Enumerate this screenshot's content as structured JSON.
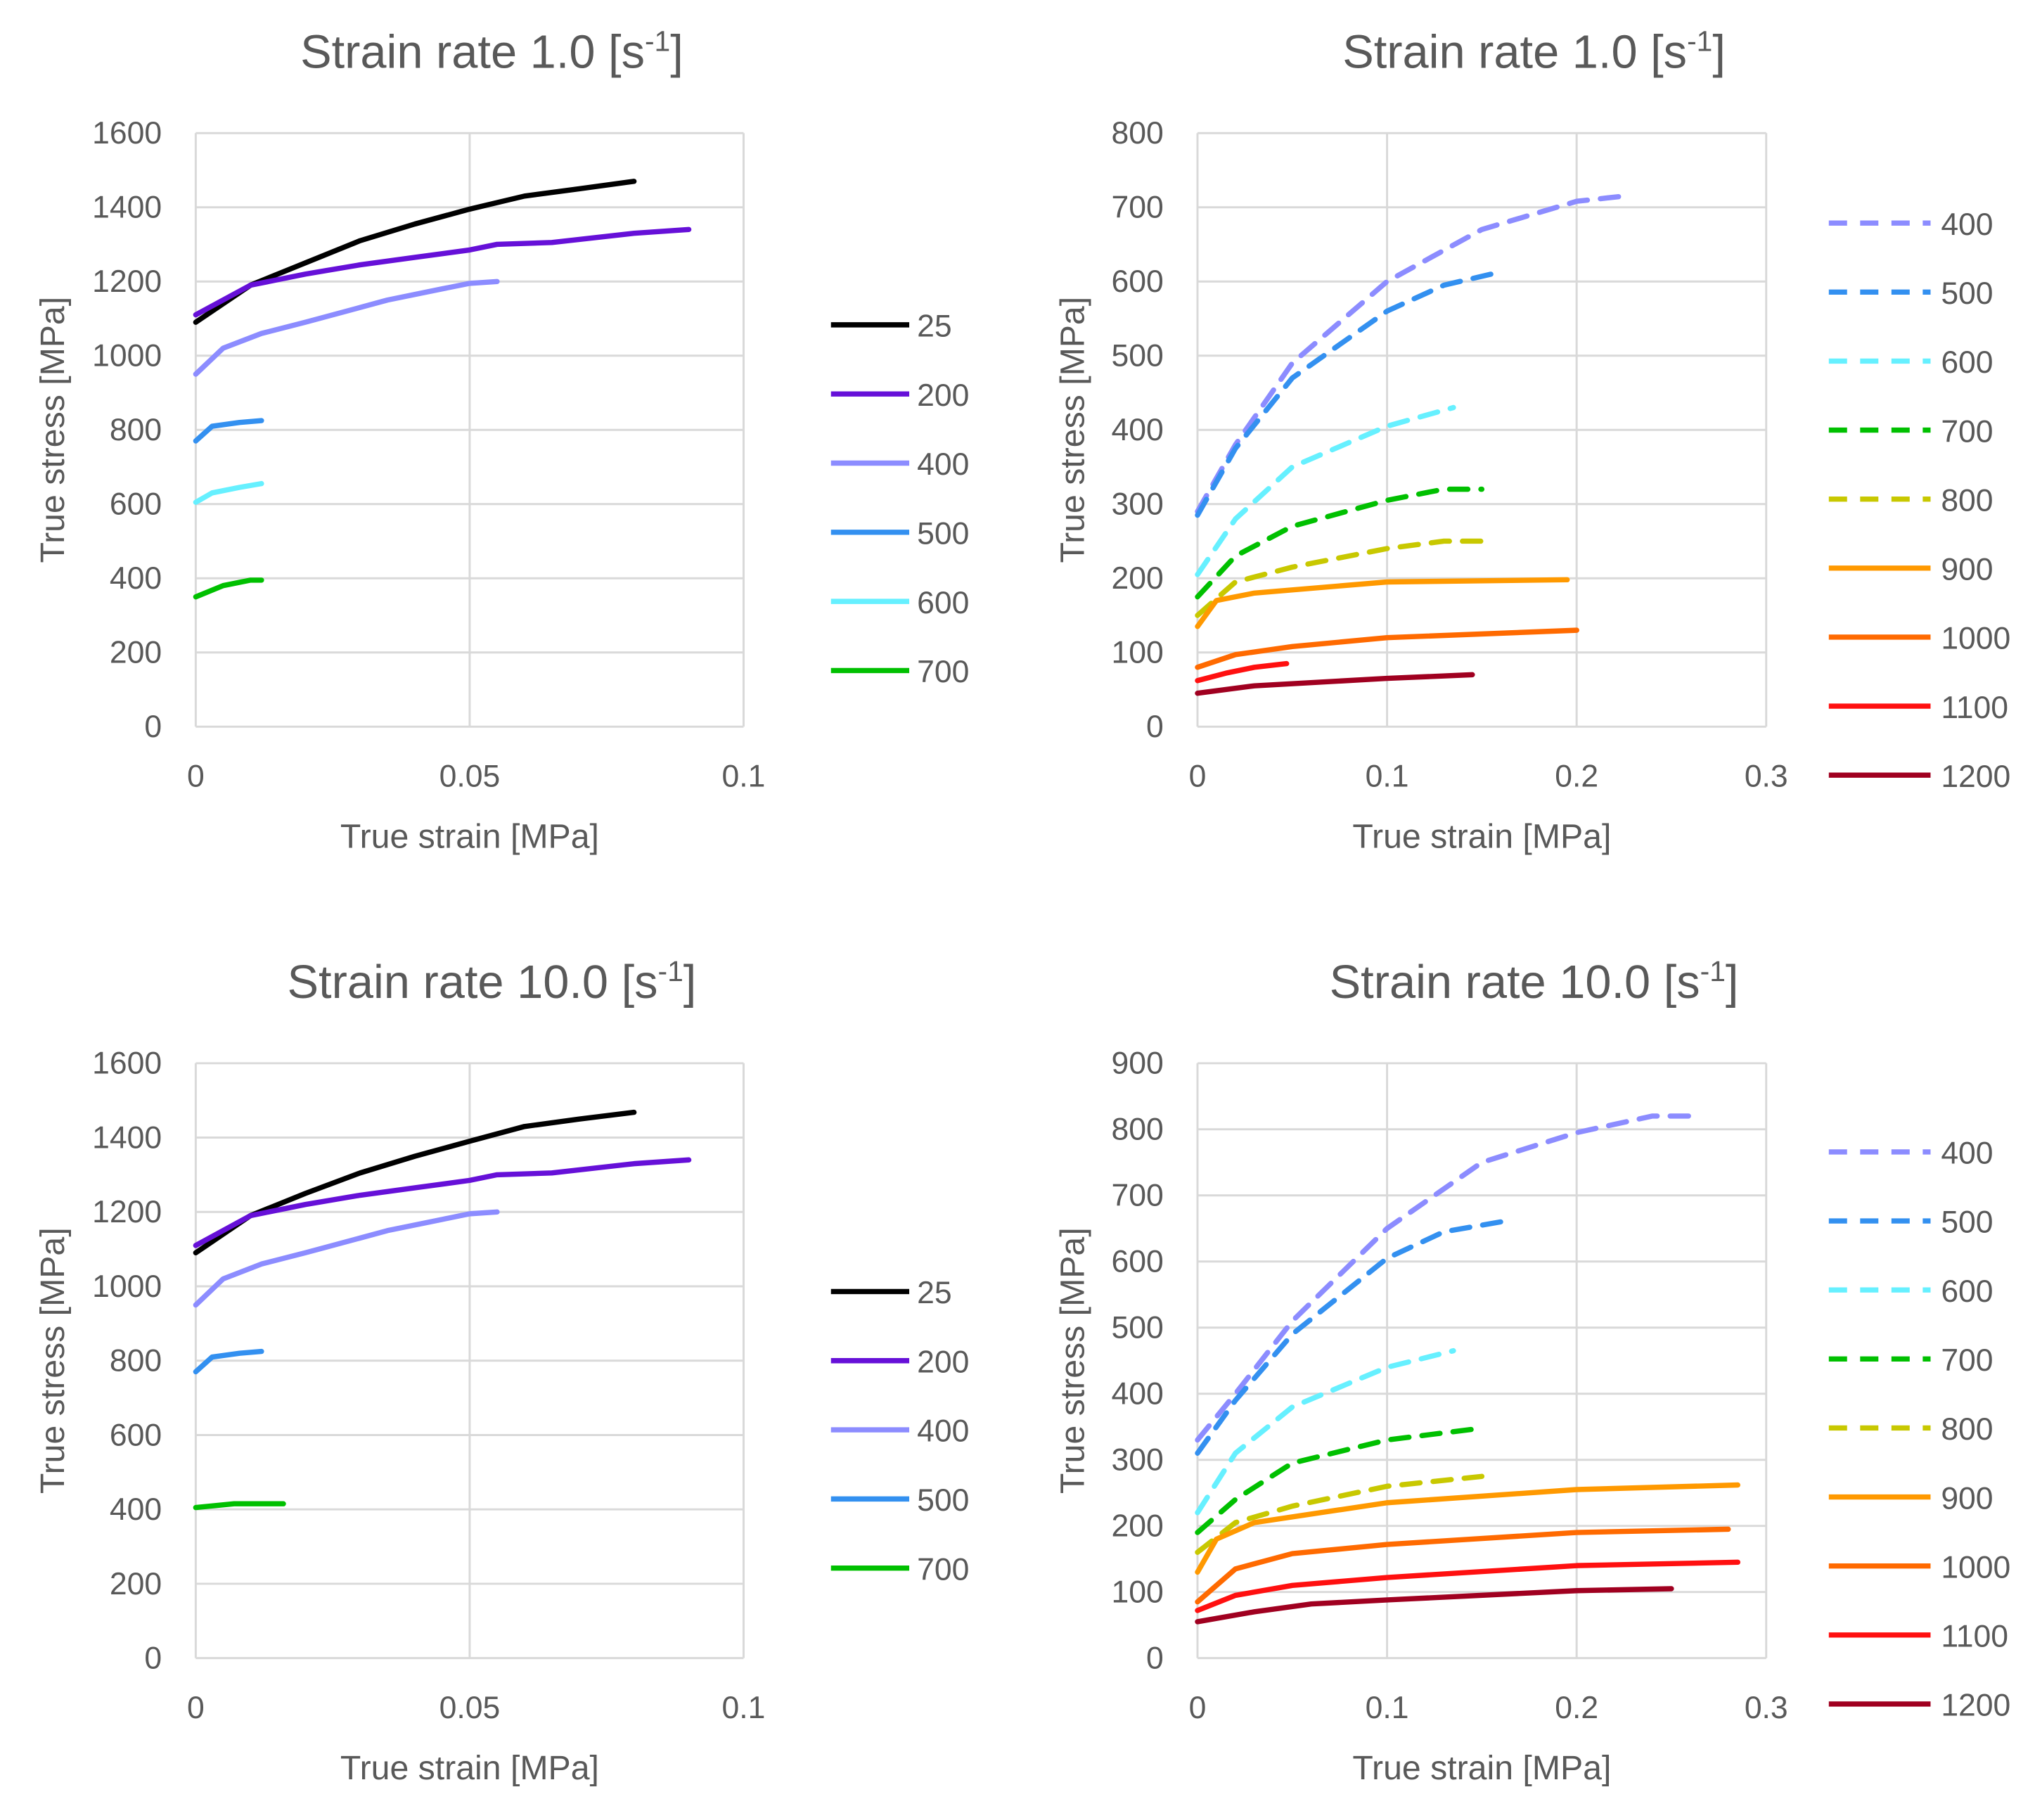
{
  "chart_data": [
    {
      "type": "line",
      "title_main": "Strain rate 1.0 [s",
      "title_sup": "-1",
      "title_end": "]",
      "xlabel": "True strain [MPa]",
      "ylabel": "True stress [MPa]",
      "xlim": [
        0,
        0.1
      ],
      "xticks": [
        0,
        0.05,
        0.1
      ],
      "xtick_labels": [
        "0",
        "0.05",
        "0.1"
      ],
      "ylim": [
        0,
        1600
      ],
      "yticks": [
        0,
        200,
        400,
        600,
        800,
        1000,
        1200,
        1400,
        1600
      ],
      "ytick_labels": [
        "0",
        "200",
        "400",
        "600",
        "800",
        "1000",
        "1200",
        "1400",
        "1600"
      ],
      "grid": true,
      "legend": "right",
      "series": [
        {
          "name": "25",
          "color": "#000000",
          "dash": false,
          "points": [
            [
              0,
              1090
            ],
            [
              0.01,
              1190
            ],
            [
              0.02,
              1250
            ],
            [
              0.03,
              1310
            ],
            [
              0.04,
              1355
            ],
            [
              0.05,
              1395
            ],
            [
              0.06,
              1430
            ],
            [
              0.07,
              1450
            ],
            [
              0.08,
              1470
            ]
          ]
        },
        {
          "name": "200",
          "color": "#6610d8",
          "dash": false,
          "points": [
            [
              0,
              1110
            ],
            [
              0.01,
              1190
            ],
            [
              0.02,
              1220
            ],
            [
              0.03,
              1245
            ],
            [
              0.04,
              1265
            ],
            [
              0.05,
              1285
            ],
            [
              0.055,
              1300
            ],
            [
              0.065,
              1305
            ],
            [
              0.08,
              1330
            ],
            [
              0.09,
              1340
            ]
          ]
        },
        {
          "name": "400",
          "color": "#8c8cff",
          "dash": false,
          "points": [
            [
              0,
              950
            ],
            [
              0.005,
              1020
            ],
            [
              0.012,
              1060
            ],
            [
              0.02,
              1090
            ],
            [
              0.03,
              1130
            ],
            [
              0.035,
              1150
            ],
            [
              0.045,
              1180
            ],
            [
              0.05,
              1195
            ],
            [
              0.055,
              1200
            ]
          ]
        },
        {
          "name": "500",
          "color": "#3390f0",
          "dash": false,
          "points": [
            [
              0,
              770
            ],
            [
              0.003,
              810
            ],
            [
              0.008,
              820
            ],
            [
              0.012,
              825
            ]
          ]
        },
        {
          "name": "600",
          "color": "#66f0ff",
          "dash": false,
          "points": [
            [
              0,
              605
            ],
            [
              0.003,
              630
            ],
            [
              0.008,
              645
            ],
            [
              0.012,
              655
            ]
          ]
        },
        {
          "name": "700",
          "color": "#00c000",
          "dash": false,
          "points": [
            [
              0,
              350
            ],
            [
              0.005,
              380
            ],
            [
              0.01,
              395
            ],
            [
              0.012,
              395
            ]
          ]
        }
      ]
    },
    {
      "type": "line",
      "title_main": "Strain rate 1.0 [s",
      "title_sup": "-1",
      "title_end": "]",
      "xlabel": "True strain [MPa]",
      "ylabel": "True stress [MPa]",
      "xlim": [
        0,
        0.3
      ],
      "xticks": [
        0,
        0.1,
        0.2,
        0.3
      ],
      "xtick_labels": [
        "0",
        "0.1",
        "0.2",
        "0.3"
      ],
      "ylim": [
        0,
        800
      ],
      "yticks": [
        0,
        100,
        200,
        300,
        400,
        500,
        600,
        700,
        800
      ],
      "ytick_labels": [
        "0",
        "100",
        "200",
        "300",
        "400",
        "500",
        "600",
        "700",
        "800"
      ],
      "grid": true,
      "legend": "right",
      "series": [
        {
          "name": "400",
          "color": "#8c8cff",
          "dash": true,
          "points": [
            [
              0,
              290
            ],
            [
              0.02,
              380
            ],
            [
              0.05,
              490
            ],
            [
              0.1,
              600
            ],
            [
              0.15,
              670
            ],
            [
              0.2,
              708
            ],
            [
              0.225,
              715
            ]
          ]
        },
        {
          "name": "500",
          "color": "#3390f0",
          "dash": true,
          "points": [
            [
              0,
              285
            ],
            [
              0.02,
              375
            ],
            [
              0.05,
              470
            ],
            [
              0.1,
              560
            ],
            [
              0.13,
              595
            ],
            [
              0.155,
              610
            ]
          ]
        },
        {
          "name": "600",
          "color": "#66f0ff",
          "dash": true,
          "points": [
            [
              0,
              205
            ],
            [
              0.02,
              280
            ],
            [
              0.05,
              350
            ],
            [
              0.1,
              405
            ],
            [
              0.135,
              430
            ]
          ]
        },
        {
          "name": "700",
          "color": "#00c000",
          "dash": true,
          "points": [
            [
              0,
              175
            ],
            [
              0.02,
              230
            ],
            [
              0.05,
              270
            ],
            [
              0.1,
              305
            ],
            [
              0.13,
              320
            ],
            [
              0.15,
              320
            ]
          ]
        },
        {
          "name": "800",
          "color": "#c8c800",
          "dash": true,
          "points": [
            [
              0,
              150
            ],
            [
              0.02,
              195
            ],
            [
              0.05,
              215
            ],
            [
              0.1,
              240
            ],
            [
              0.13,
              250
            ],
            [
              0.155,
              250
            ]
          ]
        },
        {
          "name": "900",
          "color": "#ff9900",
          "dash": false,
          "points": [
            [
              0,
              135
            ],
            [
              0.01,
              170
            ],
            [
              0.03,
              180
            ],
            [
              0.1,
              195
            ],
            [
              0.195,
              198
            ]
          ]
        },
        {
          "name": "1000",
          "color": "#ff6a00",
          "dash": false,
          "points": [
            [
              0,
              80
            ],
            [
              0.02,
              97
            ],
            [
              0.05,
              108
            ],
            [
              0.1,
              120
            ],
            [
              0.2,
              130
            ]
          ]
        },
        {
          "name": "1100",
          "color": "#ff1010",
          "dash": false,
          "points": [
            [
              0,
              62
            ],
            [
              0.015,
              72
            ],
            [
              0.03,
              80
            ],
            [
              0.047,
              85
            ]
          ]
        },
        {
          "name": "1200",
          "color": "#a00020",
          "dash": false,
          "points": [
            [
              0,
              45
            ],
            [
              0.03,
              55
            ],
            [
              0.1,
              65
            ],
            [
              0.145,
              70
            ]
          ]
        }
      ]
    },
    {
      "type": "line",
      "title_main": "Strain rate 10.0 [s",
      "title_sup": "-1",
      "title_end": "]",
      "xlabel": "True strain [MPa]",
      "ylabel": "True stress [MPa]",
      "xlim": [
        0,
        0.1
      ],
      "xticks": [
        0,
        0.05,
        0.1
      ],
      "xtick_labels": [
        "0",
        "0.05",
        "0.1"
      ],
      "ylim": [
        0,
        1600
      ],
      "yticks": [
        0,
        200,
        400,
        600,
        800,
        1000,
        1200,
        1400,
        1600
      ],
      "ytick_labels": [
        "0",
        "200",
        "400",
        "600",
        "800",
        "1000",
        "1200",
        "1400",
        "1600"
      ],
      "grid": true,
      "legend": "right",
      "series": [
        {
          "name": "25",
          "color": "#000000",
          "dash": false,
          "points": [
            [
              0,
              1090
            ],
            [
              0.01,
              1190
            ],
            [
              0.02,
              1250
            ],
            [
              0.03,
              1305
            ],
            [
              0.04,
              1350
            ],
            [
              0.05,
              1390
            ],
            [
              0.06,
              1430
            ],
            [
              0.07,
              1450
            ],
            [
              0.08,
              1468
            ]
          ]
        },
        {
          "name": "200",
          "color": "#6610d8",
          "dash": false,
          "points": [
            [
              0,
              1110
            ],
            [
              0.01,
              1190
            ],
            [
              0.02,
              1220
            ],
            [
              0.03,
              1245
            ],
            [
              0.04,
              1265
            ],
            [
              0.05,
              1285
            ],
            [
              0.055,
              1300
            ],
            [
              0.065,
              1305
            ],
            [
              0.08,
              1330
            ],
            [
              0.09,
              1340
            ]
          ]
        },
        {
          "name": "400",
          "color": "#8c8cff",
          "dash": false,
          "points": [
            [
              0,
              950
            ],
            [
              0.005,
              1020
            ],
            [
              0.012,
              1060
            ],
            [
              0.02,
              1090
            ],
            [
              0.03,
              1130
            ],
            [
              0.035,
              1150
            ],
            [
              0.045,
              1180
            ],
            [
              0.05,
              1195
            ],
            [
              0.055,
              1200
            ]
          ]
        },
        {
          "name": "500",
          "color": "#3390f0",
          "dash": false,
          "points": [
            [
              0,
              770
            ],
            [
              0.003,
              810
            ],
            [
              0.008,
              820
            ],
            [
              0.012,
              825
            ]
          ]
        },
        {
          "name": "700",
          "color": "#00c000",
          "dash": false,
          "points": [
            [
              0,
              405
            ],
            [
              0.007,
              415
            ],
            [
              0.016,
              415
            ]
          ]
        }
      ]
    },
    {
      "type": "line",
      "title_main": "Strain rate 10.0 [s",
      "title_sup": "-1",
      "title_end": "]",
      "xlabel": "True strain [MPa]",
      "ylabel": "True stress [MPa]",
      "xlim": [
        0,
        0.3
      ],
      "xticks": [
        0,
        0.1,
        0.2,
        0.3
      ],
      "xtick_labels": [
        "0",
        "0.1",
        "0.2",
        "0.3"
      ],
      "ylim": [
        0,
        900
      ],
      "yticks": [
        0,
        100,
        200,
        300,
        400,
        500,
        600,
        700,
        800,
        900
      ],
      "ytick_labels": [
        "0",
        "100",
        "200",
        "300",
        "400",
        "500",
        "600",
        "700",
        "800",
        "900"
      ],
      "grid": true,
      "legend": "right",
      "series": [
        {
          "name": "400",
          "color": "#8c8cff",
          "dash": true,
          "points": [
            [
              0,
              330
            ],
            [
              0.02,
              400
            ],
            [
              0.05,
              510
            ],
            [
              0.1,
              650
            ],
            [
              0.15,
              750
            ],
            [
              0.2,
              795
            ],
            [
              0.24,
              820
            ],
            [
              0.265,
              820
            ]
          ]
        },
        {
          "name": "500",
          "color": "#3390f0",
          "dash": true,
          "points": [
            [
              0,
              310
            ],
            [
              0.02,
              390
            ],
            [
              0.05,
              490
            ],
            [
              0.1,
              605
            ],
            [
              0.13,
              645
            ],
            [
              0.16,
              660
            ]
          ]
        },
        {
          "name": "600",
          "color": "#66f0ff",
          "dash": true,
          "points": [
            [
              0,
              220
            ],
            [
              0.02,
              310
            ],
            [
              0.05,
              380
            ],
            [
              0.1,
              440
            ],
            [
              0.135,
              465
            ]
          ]
        },
        {
          "name": "700",
          "color": "#00c000",
          "dash": true,
          "points": [
            [
              0,
              190
            ],
            [
              0.02,
              240
            ],
            [
              0.05,
              295
            ],
            [
              0.1,
              330
            ],
            [
              0.15,
              348
            ]
          ]
        },
        {
          "name": "800",
          "color": "#c8c800",
          "dash": true,
          "points": [
            [
              0,
              160
            ],
            [
              0.02,
              205
            ],
            [
              0.05,
              230
            ],
            [
              0.1,
              260
            ],
            [
              0.15,
              275
            ]
          ]
        },
        {
          "name": "900",
          "color": "#ff9900",
          "dash": false,
          "points": [
            [
              0,
              130
            ],
            [
              0.01,
              180
            ],
            [
              0.03,
              205
            ],
            [
              0.1,
              235
            ],
            [
              0.2,
              255
            ],
            [
              0.285,
              262
            ]
          ]
        },
        {
          "name": "1000",
          "color": "#ff6a00",
          "dash": false,
          "points": [
            [
              0,
              85
            ],
            [
              0.02,
              135
            ],
            [
              0.05,
              158
            ],
            [
              0.1,
              172
            ],
            [
              0.2,
              190
            ],
            [
              0.28,
              195
            ]
          ]
        },
        {
          "name": "1100",
          "color": "#ff1010",
          "dash": false,
          "points": [
            [
              0,
              72
            ],
            [
              0.02,
              95
            ],
            [
              0.05,
              110
            ],
            [
              0.1,
              122
            ],
            [
              0.2,
              140
            ],
            [
              0.285,
              145
            ]
          ]
        },
        {
          "name": "1200",
          "color": "#a00020",
          "dash": false,
          "points": [
            [
              0,
              55
            ],
            [
              0.03,
              70
            ],
            [
              0.06,
              82
            ],
            [
              0.1,
              88
            ],
            [
              0.2,
              102
            ],
            [
              0.25,
              105
            ]
          ]
        }
      ]
    }
  ]
}
